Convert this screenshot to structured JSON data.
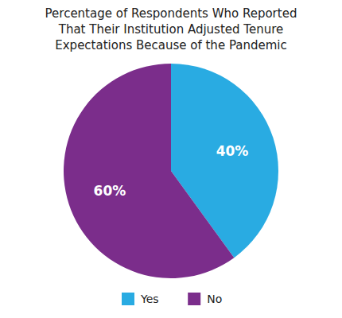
{
  "chart_data": {
    "type": "pie",
    "title": "Percentage of Respondents Who Reported\nThat Their Institution Adjusted Tenure\nExpectations Because of the Pandemic",
    "categories": [
      "Yes",
      "No"
    ],
    "values": [
      40,
      60
    ],
    "value_labels": [
      "40%",
      "60%"
    ],
    "colors": [
      "#29ABE2",
      "#7B2D8B"
    ],
    "data_labels": true,
    "legend": "bottom"
  }
}
